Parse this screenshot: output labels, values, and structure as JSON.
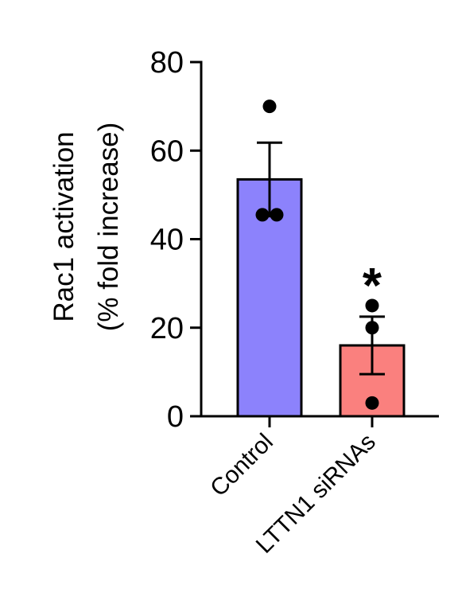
{
  "chart_data": {
    "type": "bar",
    "title": "",
    "ylabel": "Rac1 activation",
    "ylabel_line2": "(% fold increase)",
    "xlabel": "",
    "categories": [
      "Control",
      "LTTN1 siRNAs"
    ],
    "values": [
      53.5,
      16
    ],
    "errors": [
      8.3,
      6.5
    ],
    "points": [
      [
        70,
        45.5,
        45.5
      ],
      [
        25,
        20,
        3
      ]
    ],
    "significance": [
      "",
      "*"
    ],
    "ylim": [
      0,
      80
    ],
    "yticks": [
      "0",
      "20",
      "40",
      "60",
      "80"
    ],
    "bar_colors": [
      "#8c82fc",
      "#fa807e"
    ],
    "grid": false,
    "legend": "none"
  }
}
